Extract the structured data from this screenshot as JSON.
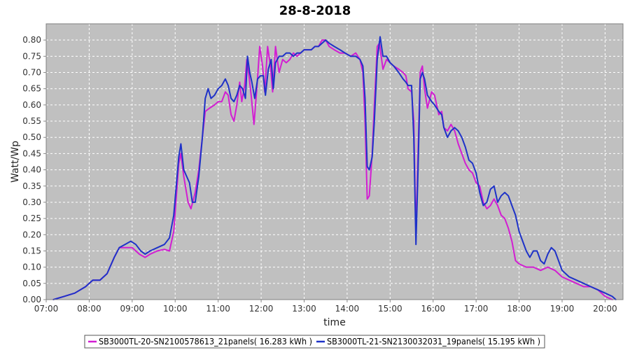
{
  "chart_data": {
    "type": "line",
    "title": "28-8-2018",
    "xlabel": "time",
    "ylabel": "Watt/Wp",
    "xlim": [
      "07:00",
      "20:25"
    ],
    "ylim": [
      0,
      0.85
    ],
    "x_ticks": [
      "07:00",
      "08:00",
      "09:00",
      "10:00",
      "11:00",
      "12:00",
      "13:00",
      "14:00",
      "15:00",
      "16:00",
      "17:00",
      "18:00",
      "19:00",
      "20:00"
    ],
    "y_ticks": [
      "0.00",
      "0.05",
      "0.10",
      "0.15",
      "0.20",
      "0.25",
      "0.30",
      "0.35",
      "0.40",
      "0.45",
      "0.50",
      "0.55",
      "0.60",
      "0.65",
      "0.70",
      "0.75",
      "0.80"
    ],
    "grid": true,
    "legend_position": "bottom",
    "series": [
      {
        "name": "SB3000TL-20-SN2100578613_21panels( 16.283 kWh )",
        "color": "#d21ed2",
        "points": [
          [
            "07:10",
            0.0
          ],
          [
            "07:25",
            0.01
          ],
          [
            "07:40",
            0.02
          ],
          [
            "07:55",
            0.04
          ],
          [
            "08:05",
            0.06
          ],
          [
            "08:15",
            0.06
          ],
          [
            "08:25",
            0.08
          ],
          [
            "08:35",
            0.13
          ],
          [
            "08:42",
            0.16
          ],
          [
            "08:50",
            0.16
          ],
          [
            "09:00",
            0.16
          ],
          [
            "09:10",
            0.14
          ],
          [
            "09:18",
            0.13
          ],
          [
            "09:25",
            0.14
          ],
          [
            "09:35",
            0.15
          ],
          [
            "09:45",
            0.155
          ],
          [
            "09:52",
            0.15
          ],
          [
            "09:58",
            0.21
          ],
          [
            "10:05",
            0.42
          ],
          [
            "10:08",
            0.45
          ],
          [
            "10:12",
            0.38
          ],
          [
            "10:18",
            0.3
          ],
          [
            "10:22",
            0.28
          ],
          [
            "10:28",
            0.33
          ],
          [
            "10:33",
            0.4
          ],
          [
            "10:38",
            0.5
          ],
          [
            "10:42",
            0.58
          ],
          [
            "10:48",
            0.59
          ],
          [
            "10:55",
            0.6
          ],
          [
            "11:00",
            0.61
          ],
          [
            "11:05",
            0.61
          ],
          [
            "11:10",
            0.64
          ],
          [
            "11:14",
            0.63
          ],
          [
            "11:18",
            0.57
          ],
          [
            "11:22",
            0.55
          ],
          [
            "11:26",
            0.6
          ],
          [
            "11:30",
            0.67
          ],
          [
            "11:33",
            0.61
          ],
          [
            "11:37",
            0.66
          ],
          [
            "11:40",
            0.74
          ],
          [
            "11:43",
            0.69
          ],
          [
            "11:46",
            0.63
          ],
          [
            "11:50",
            0.54
          ],
          [
            "11:54",
            0.65
          ],
          [
            "11:58",
            0.78
          ],
          [
            "12:02",
            0.72
          ],
          [
            "12:05",
            0.64
          ],
          [
            "12:09",
            0.78
          ],
          [
            "12:13",
            0.72
          ],
          [
            "12:16",
            0.64
          ],
          [
            "12:20",
            0.78
          ],
          [
            "12:25",
            0.7
          ],
          [
            "12:30",
            0.74
          ],
          [
            "12:35",
            0.73
          ],
          [
            "12:40",
            0.74
          ],
          [
            "12:45",
            0.76
          ],
          [
            "12:50",
            0.75
          ],
          [
            "12:55",
            0.76
          ],
          [
            "13:00",
            0.77
          ],
          [
            "13:10",
            0.77
          ],
          [
            "13:15",
            0.78
          ],
          [
            "13:20",
            0.78
          ],
          [
            "13:25",
            0.8
          ],
          [
            "13:30",
            0.8
          ],
          [
            "13:35",
            0.78
          ],
          [
            "13:42",
            0.77
          ],
          [
            "13:50",
            0.76
          ],
          [
            "13:57",
            0.76
          ],
          [
            "14:05",
            0.75
          ],
          [
            "14:12",
            0.76
          ],
          [
            "14:18",
            0.74
          ],
          [
            "14:22",
            0.7
          ],
          [
            "14:25",
            0.55
          ],
          [
            "14:28",
            0.31
          ],
          [
            "14:31",
            0.32
          ],
          [
            "14:35",
            0.45
          ],
          [
            "14:38",
            0.6
          ],
          [
            "14:42",
            0.78
          ],
          [
            "14:45",
            0.79
          ],
          [
            "14:50",
            0.71
          ],
          [
            "14:55",
            0.74
          ],
          [
            "15:00",
            0.73
          ],
          [
            "15:05",
            0.72
          ],
          [
            "15:12",
            0.71
          ],
          [
            "15:18",
            0.7
          ],
          [
            "15:22",
            0.69
          ],
          [
            "15:25",
            0.65
          ],
          [
            "15:30",
            0.64
          ],
          [
            "15:33",
            0.55
          ],
          [
            "15:36",
            0.2
          ],
          [
            "15:39",
            0.45
          ],
          [
            "15:42",
            0.7
          ],
          [
            "15:45",
            0.72
          ],
          [
            "15:48",
            0.65
          ],
          [
            "15:52",
            0.59
          ],
          [
            "15:58",
            0.64
          ],
          [
            "16:02",
            0.63
          ],
          [
            "16:08",
            0.57
          ],
          [
            "16:12",
            0.58
          ],
          [
            "16:15",
            0.53
          ],
          [
            "16:20",
            0.52
          ],
          [
            "16:25",
            0.54
          ],
          [
            "16:30",
            0.52
          ],
          [
            "16:35",
            0.48
          ],
          [
            "16:40",
            0.45
          ],
          [
            "16:45",
            0.42
          ],
          [
            "16:50",
            0.4
          ],
          [
            "16:55",
            0.39
          ],
          [
            "17:00",
            0.36
          ],
          [
            "17:05",
            0.35
          ],
          [
            "17:10",
            0.3
          ],
          [
            "17:15",
            0.28
          ],
          [
            "17:20",
            0.29
          ],
          [
            "17:25",
            0.31
          ],
          [
            "17:30",
            0.29
          ],
          [
            "17:35",
            0.26
          ],
          [
            "17:40",
            0.25
          ],
          [
            "17:45",
            0.22
          ],
          [
            "17:50",
            0.18
          ],
          [
            "17:55",
            0.12
          ],
          [
            "18:00",
            0.11
          ],
          [
            "18:10",
            0.1
          ],
          [
            "18:20",
            0.1
          ],
          [
            "18:30",
            0.09
          ],
          [
            "18:40",
            0.1
          ],
          [
            "18:50",
            0.09
          ],
          [
            "19:00",
            0.07
          ],
          [
            "19:10",
            0.06
          ],
          [
            "19:20",
            0.05
          ],
          [
            "19:30",
            0.04
          ],
          [
            "19:40",
            0.04
          ],
          [
            "19:50",
            0.03
          ],
          [
            "20:00",
            0.01
          ],
          [
            "20:10",
            0.0
          ]
        ]
      },
      {
        "name": "SB3000TL-21-SN2130032031_19panels( 15.195 kWh )",
        "color": "#1e32c8",
        "points": [
          [
            "07:10",
            0.0
          ],
          [
            "07:25",
            0.01
          ],
          [
            "07:40",
            0.02
          ],
          [
            "07:55",
            0.04
          ],
          [
            "08:05",
            0.06
          ],
          [
            "08:15",
            0.06
          ],
          [
            "08:25",
            0.08
          ],
          [
            "08:35",
            0.13
          ],
          [
            "08:42",
            0.16
          ],
          [
            "08:50",
            0.17
          ],
          [
            "08:58",
            0.18
          ],
          [
            "09:05",
            0.17
          ],
          [
            "09:12",
            0.15
          ],
          [
            "09:18",
            0.14
          ],
          [
            "09:25",
            0.15
          ],
          [
            "09:35",
            0.16
          ],
          [
            "09:45",
            0.17
          ],
          [
            "09:52",
            0.19
          ],
          [
            "09:58",
            0.26
          ],
          [
            "10:05",
            0.44
          ],
          [
            "10:08",
            0.48
          ],
          [
            "10:12",
            0.4
          ],
          [
            "10:16",
            0.38
          ],
          [
            "10:20",
            0.36
          ],
          [
            "10:24",
            0.3
          ],
          [
            "10:28",
            0.3
          ],
          [
            "10:33",
            0.38
          ],
          [
            "10:38",
            0.5
          ],
          [
            "10:42",
            0.62
          ],
          [
            "10:46",
            0.65
          ],
          [
            "10:50",
            0.62
          ],
          [
            "10:55",
            0.63
          ],
          [
            "11:00",
            0.65
          ],
          [
            "11:05",
            0.66
          ],
          [
            "11:10",
            0.68
          ],
          [
            "11:14",
            0.66
          ],
          [
            "11:18",
            0.62
          ],
          [
            "11:22",
            0.61
          ],
          [
            "11:26",
            0.63
          ],
          [
            "11:30",
            0.66
          ],
          [
            "11:34",
            0.65
          ],
          [
            "11:38",
            0.62
          ],
          [
            "11:41",
            0.75
          ],
          [
            "11:44",
            0.7
          ],
          [
            "11:47",
            0.67
          ],
          [
            "11:51",
            0.62
          ],
          [
            "11:55",
            0.68
          ],
          [
            "11:59",
            0.69
          ],
          [
            "12:03",
            0.69
          ],
          [
            "12:06",
            0.63
          ],
          [
            "12:10",
            0.71
          ],
          [
            "12:14",
            0.74
          ],
          [
            "12:17",
            0.65
          ],
          [
            "12:20",
            0.73
          ],
          [
            "12:25",
            0.75
          ],
          [
            "12:30",
            0.75
          ],
          [
            "12:35",
            0.76
          ],
          [
            "12:40",
            0.76
          ],
          [
            "12:45",
            0.75
          ],
          [
            "12:50",
            0.76
          ],
          [
            "12:55",
            0.76
          ],
          [
            "13:00",
            0.77
          ],
          [
            "13:10",
            0.77
          ],
          [
            "13:15",
            0.78
          ],
          [
            "13:20",
            0.78
          ],
          [
            "13:25",
            0.79
          ],
          [
            "13:30",
            0.8
          ],
          [
            "13:35",
            0.79
          ],
          [
            "13:42",
            0.78
          ],
          [
            "13:50",
            0.77
          ],
          [
            "13:57",
            0.76
          ],
          [
            "14:05",
            0.75
          ],
          [
            "14:12",
            0.75
          ],
          [
            "14:18",
            0.74
          ],
          [
            "14:22",
            0.72
          ],
          [
            "14:25",
            0.62
          ],
          [
            "14:28",
            0.41
          ],
          [
            "14:31",
            0.4
          ],
          [
            "14:35",
            0.44
          ],
          [
            "14:38",
            0.55
          ],
          [
            "14:42",
            0.74
          ],
          [
            "14:46",
            0.81
          ],
          [
            "14:50",
            0.75
          ],
          [
            "14:55",
            0.75
          ],
          [
            "15:00",
            0.73
          ],
          [
            "15:05",
            0.72
          ],
          [
            "15:12",
            0.7
          ],
          [
            "15:18",
            0.68
          ],
          [
            "15:22",
            0.67
          ],
          [
            "15:25",
            0.66
          ],
          [
            "15:30",
            0.66
          ],
          [
            "15:33",
            0.5
          ],
          [
            "15:36",
            0.17
          ],
          [
            "15:39",
            0.4
          ],
          [
            "15:42",
            0.68
          ],
          [
            "15:45",
            0.7
          ],
          [
            "15:48",
            0.68
          ],
          [
            "15:52",
            0.63
          ],
          [
            "15:58",
            0.61
          ],
          [
            "16:02",
            0.6
          ],
          [
            "16:08",
            0.58
          ],
          [
            "16:12",
            0.57
          ],
          [
            "16:15",
            0.53
          ],
          [
            "16:20",
            0.5
          ],
          [
            "16:25",
            0.52
          ],
          [
            "16:30",
            0.53
          ],
          [
            "16:35",
            0.52
          ],
          [
            "16:40",
            0.5
          ],
          [
            "16:45",
            0.47
          ],
          [
            "16:50",
            0.43
          ],
          [
            "16:55",
            0.42
          ],
          [
            "17:00",
            0.39
          ],
          [
            "17:05",
            0.33
          ],
          [
            "17:10",
            0.29
          ],
          [
            "17:15",
            0.3
          ],
          [
            "17:20",
            0.34
          ],
          [
            "17:25",
            0.35
          ],
          [
            "17:30",
            0.3
          ],
          [
            "17:35",
            0.32
          ],
          [
            "17:40",
            0.33
          ],
          [
            "17:45",
            0.32
          ],
          [
            "17:50",
            0.29
          ],
          [
            "17:55",
            0.26
          ],
          [
            "18:00",
            0.21
          ],
          [
            "18:05",
            0.18
          ],
          [
            "18:10",
            0.15
          ],
          [
            "18:15",
            0.13
          ],
          [
            "18:20",
            0.15
          ],
          [
            "18:25",
            0.15
          ],
          [
            "18:30",
            0.12
          ],
          [
            "18:35",
            0.11
          ],
          [
            "18:40",
            0.14
          ],
          [
            "18:45",
            0.16
          ],
          [
            "18:50",
            0.15
          ],
          [
            "18:55",
            0.12
          ],
          [
            "19:00",
            0.09
          ],
          [
            "19:10",
            0.07
          ],
          [
            "19:20",
            0.06
          ],
          [
            "19:30",
            0.05
          ],
          [
            "19:40",
            0.04
          ],
          [
            "19:50",
            0.03
          ],
          [
            "20:00",
            0.02
          ],
          [
            "20:10",
            0.01
          ],
          [
            "20:15",
            0.0
          ]
        ]
      }
    ]
  }
}
